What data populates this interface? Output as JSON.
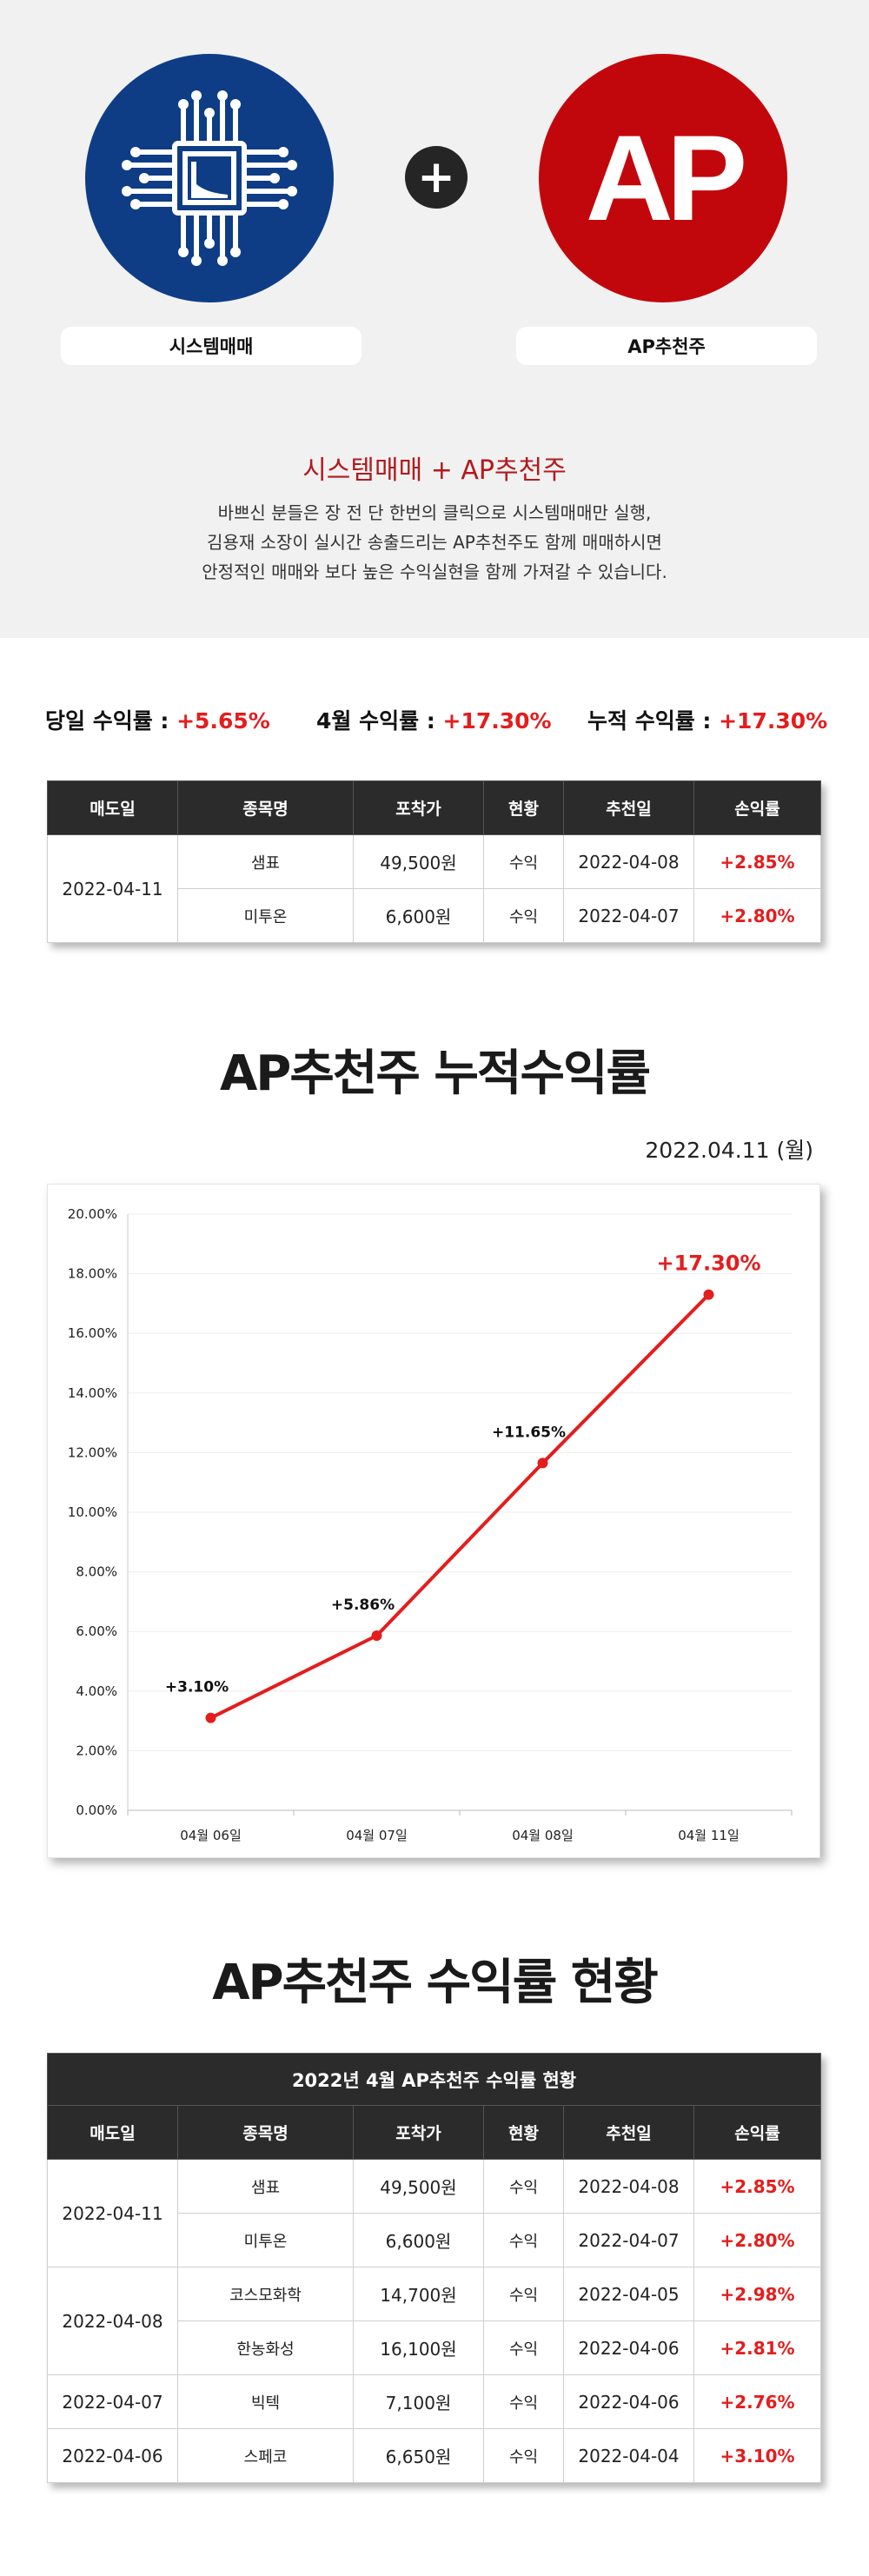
{
  "logos": {
    "system_label": "시스템매매",
    "ap_text": "AP",
    "ap_label": "AP추천주",
    "plus": "+"
  },
  "colors": {
    "system_blue": "#0e3d86",
    "ap_red": "#c2070c",
    "profit_red": "#e41d1d",
    "title_red": "#b21a1e",
    "header_dark": "#2b2b2b"
  },
  "intro": {
    "title": "시스템매매 + AP추천주",
    "line1": "바쁘신 분들은 장 전 단 한번의 클릭으로 시스템매매만 실행,",
    "line2": "김용재 소장이 실시간 송출드리는 AP추천주도 함께 매매하시면",
    "line3": "안정적인 매매와 보다 높은 수익실현을 함께 가져갈 수 있습니다."
  },
  "stats": {
    "daily_label": "당일 수익률 : ",
    "daily_value": "+5.65%",
    "month_label": "4월 수익률 : ",
    "month_value": "+17.30%",
    "cum_label": "누적 수익률 : ",
    "cum_value": "+17.30%"
  },
  "table_headers": [
    "매도일",
    "종목명",
    "포착가",
    "현황",
    "추천일",
    "손익률"
  ],
  "recent_table": {
    "groups": [
      {
        "sell_date": "2022-04-11",
        "rows": [
          {
            "name": "샘표",
            "price": "49,500원",
            "status": "수익",
            "rec_date": "2022-04-08",
            "rate": "+2.85%"
          },
          {
            "name": "미투온",
            "price": "6,600원",
            "status": "수익",
            "rec_date": "2022-04-07",
            "rate": "+2.80%"
          }
        ]
      }
    ]
  },
  "chart_section": {
    "title": "AP추천주 누적수익률",
    "date": "2022.04.11 (월)"
  },
  "chart_data": {
    "type": "line",
    "title": "",
    "xlabel": "",
    "ylabel": "",
    "categories": [
      "04월 06일",
      "04월 07일",
      "04월 08일",
      "04월 11일"
    ],
    "values": [
      3.1,
      5.86,
      11.65,
      17.3
    ],
    "data_labels": [
      "+3.10%",
      "+5.86%",
      "+11.65%",
      "+17.30%"
    ],
    "ylim": [
      0,
      20
    ],
    "yticks": [
      "0.00%",
      "2.00%",
      "4.00%",
      "6.00%",
      "8.00%",
      "10.00%",
      "12.00%",
      "14.00%",
      "16.00%",
      "18.00%",
      "20.00%"
    ],
    "grid": true,
    "line_color": "#e41d1d",
    "last_label_color": "#e41d1d"
  },
  "status_section": {
    "title": "AP추천주 수익률 현황",
    "table_caption": "2022년 4월 AP추천주 수익률 현황"
  },
  "full_table": {
    "groups": [
      {
        "sell_date": "2022-04-11",
        "rows": [
          {
            "name": "샘표",
            "price": "49,500원",
            "status": "수익",
            "rec_date": "2022-04-08",
            "rate": "+2.85%"
          },
          {
            "name": "미투온",
            "price": "6,600원",
            "status": "수익",
            "rec_date": "2022-04-07",
            "rate": "+2.80%"
          }
        ]
      },
      {
        "sell_date": "2022-04-08",
        "rows": [
          {
            "name": "코스모화학",
            "price": "14,700원",
            "status": "수익",
            "rec_date": "2022-04-05",
            "rate": "+2.98%"
          },
          {
            "name": "한농화성",
            "price": "16,100원",
            "status": "수익",
            "rec_date": "2022-04-06",
            "rate": "+2.81%"
          }
        ]
      },
      {
        "sell_date": "2022-04-07",
        "rows": [
          {
            "name": "빅텍",
            "price": "7,100원",
            "status": "수익",
            "rec_date": "2022-04-06",
            "rate": "+2.76%"
          }
        ]
      },
      {
        "sell_date": "2022-04-06",
        "rows": [
          {
            "name": "스페코",
            "price": "6,650원",
            "status": "수익",
            "rec_date": "2022-04-04",
            "rate": "+3.10%"
          }
        ]
      }
    ]
  }
}
